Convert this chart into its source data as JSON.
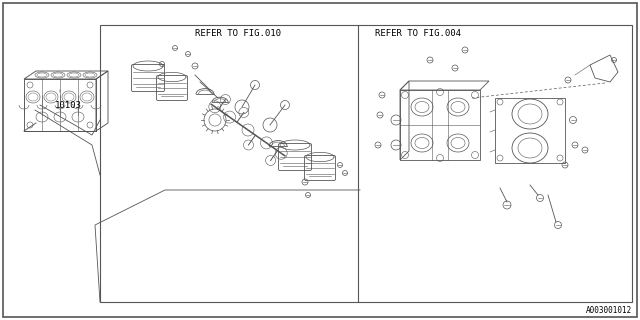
{
  "bg_color": "#ffffff",
  "line_color": "#555555",
  "text_color": "#000000",
  "part_number": "10103",
  "ref_fig010": "REFER TO FIG.010",
  "ref_fig004": "REFER TO FIG.004",
  "part_code": "A003001012",
  "lw_border": 1.0,
  "lw_comp": 0.6,
  "lw_thin": 0.4
}
